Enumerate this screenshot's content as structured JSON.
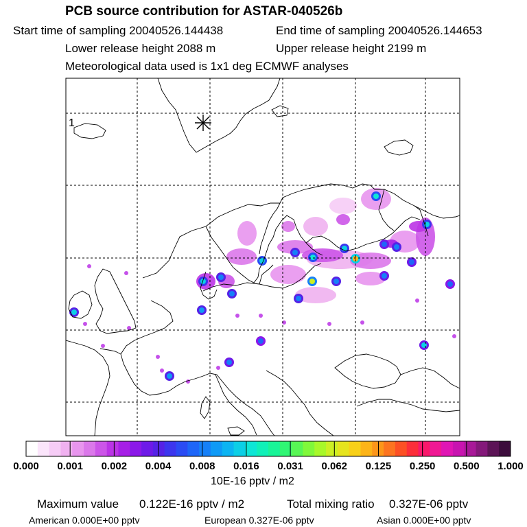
{
  "header": {
    "title": "PCB source contribution for ASTAR-040526b",
    "start_time": "Start time of sampling 20040526.144438",
    "end_time": "End time of sampling 20040526.144653",
    "lower_release": "Lower release height 2088 m",
    "upper_release": "Upper release height 2199 m",
    "met_data": "Meteorological data used is 1x1 deg ECMWF analyses"
  },
  "map": {
    "panel_label": "1",
    "release_marker": "asterisk-marker",
    "grid": true
  },
  "colorbar": {
    "tick_labels": [
      "0.000",
      "0.001",
      "0.002",
      "0.004",
      "0.008",
      "0.016",
      "0.031",
      "0.062",
      "0.125",
      "0.250",
      "0.500",
      "1.000"
    ],
    "colors": [
      "#ffffff",
      "#fbe5fb",
      "#f6ccf6",
      "#f0b1f0",
      "#e895ee",
      "#db78ea",
      "#cc55e8",
      "#bb33e6",
      "#a61fe6",
      "#8b18e8",
      "#6e1ae8",
      "#5522e6",
      "#3c36ee",
      "#2b4cf4",
      "#1e66f8",
      "#1580f8",
      "#0f9af6",
      "#0cb4f2",
      "#0ccfe6",
      "#0ee6d6",
      "#10f0b8",
      "#18f498",
      "#30f674",
      "#58f654",
      "#80f83a",
      "#a8f82a",
      "#ccf024",
      "#e6e41e",
      "#f8d018",
      "#fcb418",
      "#fc961a",
      "#fc7420",
      "#fc5024",
      "#fc2e3a",
      "#f8186a",
      "#f01894",
      "#e016b4",
      "#c814b0",
      "#a81898",
      "#84187a",
      "#5c1456",
      "#3c0c3c"
    ],
    "unit": "10E-16 pptv / m2"
  },
  "stats": {
    "max_label": "Maximum value",
    "max_value": "0.122E-16 pptv / m2",
    "total_label": "Total mixing ratio",
    "total_value": "0.327E-06 pptv",
    "american": "American  0.000E+00 pptv",
    "european": "European  0.327E-06 pptv",
    "asian": "Asian  0.000E+00 pptv"
  }
}
